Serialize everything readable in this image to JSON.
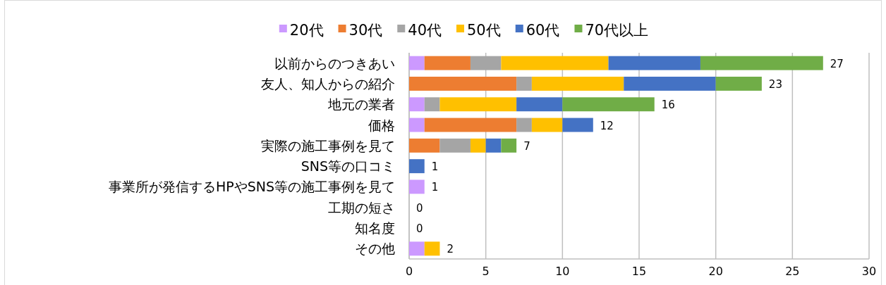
{
  "chart_data": {
    "type": "bar",
    "orientation": "horizontal",
    "stacked": true,
    "legend": "top",
    "grid": "x",
    "categories": [
      "以前からのつきあい",
      "友人、知人からの紹介",
      "地元の業者",
      "価格",
      "実際の施工事例を見て",
      "SNS等の口コミ",
      "事業所が発信するHPやSNS等の施工事例を見て",
      "工期の短さ",
      "知名度",
      "その他"
    ],
    "series": [
      {
        "name": "20代",
        "color": "#cc99ff",
        "values": [
          1,
          0,
          1,
          1,
          0,
          0,
          1,
          0,
          0,
          1
        ]
      },
      {
        "name": "30代",
        "color": "#ed7d31",
        "values": [
          3,
          7,
          0,
          6,
          2,
          0,
          0,
          0,
          0,
          0
        ]
      },
      {
        "name": "40代",
        "color": "#a5a5a5",
        "values": [
          2,
          1,
          1,
          1,
          2,
          0,
          0,
          0,
          0,
          0
        ]
      },
      {
        "name": "50代",
        "color": "#ffc000",
        "values": [
          7,
          6,
          5,
          2,
          1,
          0,
          0,
          0,
          0,
          1
        ]
      },
      {
        "name": "60代",
        "color": "#4472c4",
        "values": [
          6,
          6,
          3,
          2,
          1,
          1,
          0,
          0,
          0,
          0
        ]
      },
      {
        "name": "70代以上",
        "color": "#70ad47",
        "values": [
          8,
          3,
          6,
          0,
          1,
          0,
          0,
          0,
          0,
          0
        ]
      }
    ],
    "totals": [
      "27",
      "23",
      "16",
      "12",
      "7",
      "1",
      "1",
      "0",
      "0",
      "2"
    ],
    "xlim": [
      0,
      30
    ],
    "xticks": [
      0,
      5,
      10,
      15,
      20,
      25,
      30
    ]
  }
}
